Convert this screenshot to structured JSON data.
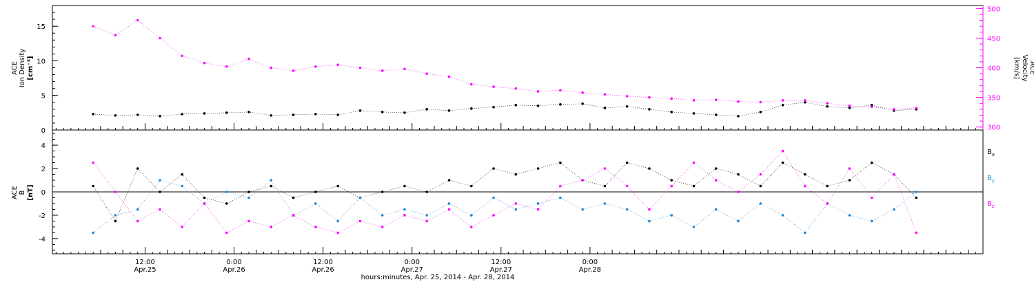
{
  "chart_data": [
    {
      "type": "scatter",
      "panel": "upper",
      "ylabel_lines": [
        "ACE",
        "Ion Density"
      ],
      "yunit": "[cm⁻³]",
      "ylabel2_lines": [
        "ACE",
        "Velocity"
      ],
      "yunit2": "[km/s]",
      "ylim": [
        0,
        18
      ],
      "y_ticks": [
        0,
        5,
        10,
        15
      ],
      "y2lim": [
        295,
        505
      ],
      "y2_ticks": [
        300,
        350,
        400,
        450,
        500
      ],
      "colors": {
        "density": "#000000",
        "velocity": "#ff00ff"
      },
      "series": [
        {
          "key": "density",
          "axis": "left",
          "x": [
            0,
            3,
            6,
            9,
            12,
            15,
            18,
            21,
            24,
            27,
            30,
            33,
            36,
            39,
            42,
            45,
            48,
            51,
            54,
            57,
            60,
            63,
            66,
            69,
            72,
            75,
            78,
            81,
            84,
            87,
            90,
            93,
            96,
            99,
            102,
            105,
            108,
            111
          ],
          "y": [
            2.3,
            2.1,
            2.2,
            2.0,
            2.3,
            2.4,
            2.5,
            2.6,
            2.1,
            2.2,
            2.3,
            2.2,
            2.8,
            2.6,
            2.5,
            3.0,
            2.8,
            3.1,
            3.3,
            3.6,
            3.5,
            3.7,
            3.8,
            3.2,
            3.4,
            3.0,
            2.6,
            2.4,
            2.2,
            2.0,
            2.6,
            3.6,
            4.0,
            3.4,
            3.2,
            3.6,
            2.8,
            3.0
          ]
        },
        {
          "key": "velocity",
          "axis": "right",
          "x": [
            0,
            3,
            6,
            9,
            12,
            15,
            18,
            21,
            24,
            27,
            30,
            33,
            36,
            39,
            42,
            45,
            48,
            51,
            54,
            57,
            60,
            63,
            66,
            69,
            72,
            75,
            78,
            81,
            84,
            87,
            90,
            93,
            96,
            99,
            102,
            105,
            108,
            111
          ],
          "y": [
            470,
            455,
            480,
            450,
            420,
            408,
            402,
            415,
            400,
            395,
            402,
            405,
            400,
            395,
            398,
            390,
            385,
            372,
            368,
            365,
            360,
            362,
            358,
            355,
            352,
            350,
            348,
            345,
            346,
            343,
            342,
            345,
            345,
            340,
            336,
            334,
            330,
            332
          ]
        }
      ]
    },
    {
      "type": "scatter",
      "panel": "lower",
      "ylabel_lines": [
        "ACE",
        "B"
      ],
      "yunit": "[nT]",
      "ylim": [
        -5.3,
        5.3
      ],
      "y_ticks": [
        -4,
        -2,
        0,
        2,
        4
      ],
      "colors": {
        "bx": "#000000",
        "by": "#1e88d8",
        "bz": "#ff00ff"
      },
      "series": [
        {
          "key": "bx",
          "name": "B",
          "sub": "x",
          "x": [
            0,
            3,
            6,
            9,
            12,
            15,
            18,
            21,
            24,
            27,
            30,
            33,
            36,
            39,
            42,
            45,
            48,
            51,
            54,
            57,
            60,
            63,
            66,
            69,
            72,
            75,
            78,
            81,
            84,
            87,
            90,
            93,
            96,
            99,
            102,
            105,
            108,
            111
          ],
          "y": [
            0.5,
            -2.5,
            2.0,
            0.0,
            1.5,
            -0.5,
            -1.0,
            0.0,
            0.5,
            -0.5,
            0.0,
            0.5,
            -0.5,
            0.0,
            0.5,
            0.0,
            1.0,
            0.5,
            2.0,
            1.5,
            2.0,
            2.5,
            1.0,
            0.5,
            2.5,
            2.0,
            1.0,
            0.5,
            2.0,
            1.5,
            0.5,
            2.5,
            1.5,
            0.5,
            1.0,
            2.5,
            1.5,
            -0.5
          ]
        },
        {
          "key": "by",
          "name": "B",
          "sub": "y",
          "x": [
            0,
            3,
            6,
            9,
            12,
            15,
            18,
            21,
            24,
            27,
            30,
            33,
            36,
            39,
            42,
            45,
            48,
            51,
            54,
            57,
            60,
            63,
            66,
            69,
            72,
            75,
            78,
            81,
            84,
            87,
            90,
            93,
            96,
            99,
            102,
            105,
            108,
            111
          ],
          "y": [
            -3.5,
            -2.0,
            -1.5,
            1.0,
            0.5,
            -1.0,
            0.0,
            -0.5,
            1.0,
            -2.0,
            -1.0,
            -2.5,
            -0.5,
            -2.0,
            -1.5,
            -2.0,
            -1.0,
            -2.0,
            -0.5,
            -1.5,
            -1.0,
            -0.5,
            -1.5,
            -1.0,
            -1.5,
            -2.5,
            -2.0,
            -3.0,
            -1.5,
            -2.5,
            -1.0,
            -2.0,
            -3.5,
            -1.0,
            -2.0,
            -2.5,
            -1.5,
            0.0
          ]
        },
        {
          "key": "bz",
          "name": "B",
          "sub": "z",
          "x": [
            0,
            3,
            6,
            9,
            12,
            15,
            18,
            21,
            24,
            27,
            30,
            33,
            36,
            39,
            42,
            45,
            48,
            51,
            54,
            57,
            60,
            63,
            66,
            69,
            72,
            75,
            78,
            81,
            84,
            87,
            90,
            93,
            96,
            99,
            102,
            105,
            108,
            111
          ],
          "y": [
            2.5,
            0.0,
            -2.5,
            -1.5,
            -3.0,
            -1.0,
            -3.5,
            -2.5,
            -3.0,
            -2.0,
            -3.0,
            -3.5,
            -2.5,
            -3.0,
            -2.0,
            -2.5,
            -1.5,
            -3.0,
            -2.0,
            -1.0,
            -1.5,
            0.5,
            1.0,
            2.0,
            0.5,
            -1.5,
            0.5,
            2.5,
            1.0,
            0.0,
            1.5,
            3.5,
            0.5,
            -1.0,
            2.0,
            -0.5,
            1.5,
            -3.5
          ]
        }
      ]
    }
  ],
  "x_axis": {
    "range_hours": [
      -5.5,
      120
    ],
    "ticks": [
      {
        "hour": 7,
        "label1": "12:00",
        "label2": "Apr.25"
      },
      {
        "hour": 19,
        "label1": "0:00",
        "label2": "Apr.26"
      },
      {
        "hour": 31,
        "label1": "12:00",
        "label2": "Apr.26"
      },
      {
        "hour": 43,
        "label1": "0:00",
        "label2": "Apr.27"
      },
      {
        "hour": 55,
        "label1": "12:00",
        "label2": "Apr.27"
      },
      {
        "hour": 67,
        "label1": "0:00",
        "label2": "Apr.28"
      }
    ],
    "title": "hours:minutes, Apr. 25, 2014 - Apr. 28, 2014"
  },
  "legend": {
    "bx_label": "B",
    "by_label": "B",
    "bz_label": "B"
  }
}
